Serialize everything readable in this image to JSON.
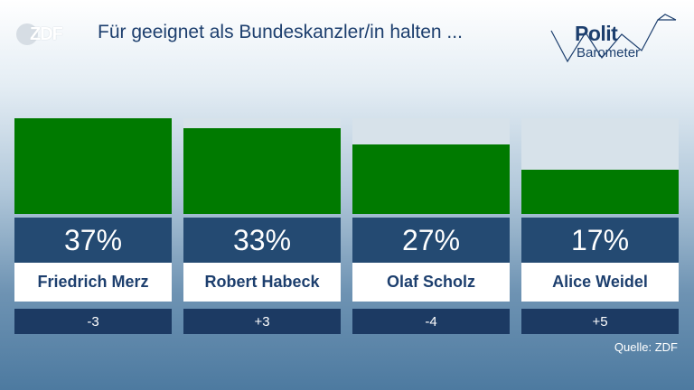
{
  "brand": {
    "logo_text": "ZDF",
    "polit_line1": "Polit",
    "polit_line2": "Barometer"
  },
  "title": "Für geeignet als Bundeskanzler/in halten ...",
  "source": "Quelle: ZDF",
  "colors": {
    "bar": "#007a00",
    "bar_track": "#d7e2ea",
    "value_box": "#244a72",
    "diff_box": "#1c3a63",
    "title": "#1d3f6e"
  },
  "chart_data": {
    "type": "bar",
    "title": "Für geeignet als Bundeskanzler/in halten ...",
    "categories": [
      "Friedrich Merz",
      "Robert Habeck",
      "Olaf Scholz",
      "Alice Weidel"
    ],
    "values": [
      37,
      33,
      27,
      17
    ],
    "value_labels": [
      "37%",
      "33%",
      "27%",
      "17%"
    ],
    "changes": [
      "-3",
      "+3",
      "-4",
      "+5"
    ],
    "ylim": [
      0,
      37
    ],
    "unit": "%",
    "grid": false,
    "legend": "none"
  }
}
